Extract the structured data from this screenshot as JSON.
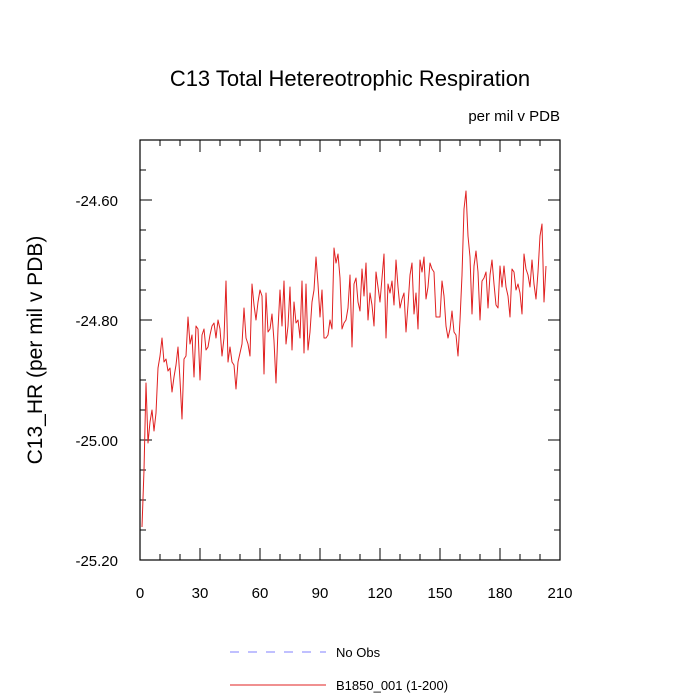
{
  "chart_data": {
    "type": "line",
    "title": "C13 Total Hetereotrophic Respiration",
    "units": "per mil v PDB",
    "ylabel": "C13_HR  (per mil v PDB)",
    "xlabel": "",
    "xlim": [
      0,
      210
    ],
    "ylim": [
      -25.2,
      -24.5
    ],
    "xticks": [
      0,
      30,
      60,
      90,
      120,
      150,
      180,
      210
    ],
    "yticks": [
      -25.2,
      -25.0,
      -24.8,
      -24.6
    ],
    "ytick_labels": [
      "-25.20",
      "-25.00",
      "-24.80",
      "-24.60"
    ],
    "legend": [
      {
        "name": "No Obs",
        "color": "#8080ff",
        "dash": true
      },
      {
        "name": "B1850_001 (1-200)",
        "color": "#e02020",
        "dash": false
      }
    ],
    "series": [
      {
        "name": "B1850_001 (1-200)",
        "color": "#e02020",
        "x_start": 1,
        "values": [
          -25.145,
          -25.05,
          -24.905,
          -25.005,
          -24.97,
          -24.95,
          -24.985,
          -24.955,
          -24.88,
          -24.86,
          -24.83,
          -24.87,
          -24.865,
          -24.885,
          -24.88,
          -24.92,
          -24.895,
          -24.875,
          -24.845,
          -24.9,
          -24.965,
          -24.865,
          -24.86,
          -24.795,
          -24.84,
          -24.825,
          -24.895,
          -24.81,
          -24.815,
          -24.9,
          -24.825,
          -24.815,
          -24.85,
          -24.845,
          -24.825,
          -24.81,
          -24.805,
          -24.83,
          -24.8,
          -24.815,
          -24.86,
          -24.83,
          -24.735,
          -24.87,
          -24.845,
          -24.87,
          -24.875,
          -24.915,
          -24.87,
          -24.855,
          -24.84,
          -24.78,
          -24.83,
          -24.84,
          -24.86,
          -24.74,
          -24.775,
          -24.8,
          -24.77,
          -24.75,
          -24.76,
          -24.89,
          -24.755,
          -24.82,
          -24.815,
          -24.79,
          -24.835,
          -24.905,
          -24.815,
          -24.75,
          -24.81,
          -24.735,
          -24.84,
          -24.81,
          -24.745,
          -24.85,
          -24.77,
          -24.805,
          -24.8,
          -24.83,
          -24.735,
          -24.855,
          -24.74,
          -24.85,
          -24.82,
          -24.77,
          -24.75,
          -24.695,
          -24.74,
          -24.795,
          -24.75,
          -24.83,
          -24.83,
          -24.825,
          -24.8,
          -24.815,
          -24.68,
          -24.705,
          -24.69,
          -24.73,
          -24.815,
          -24.805,
          -24.8,
          -24.78,
          -24.725,
          -24.845,
          -24.74,
          -24.73,
          -24.77,
          -24.785,
          -24.715,
          -24.76,
          -24.705,
          -24.8,
          -24.755,
          -24.775,
          -24.81,
          -24.72,
          -24.745,
          -24.77,
          -24.73,
          -24.69,
          -24.83,
          -24.74,
          -24.755,
          -24.735,
          -24.775,
          -24.7,
          -24.745,
          -24.78,
          -24.765,
          -24.755,
          -24.82,
          -24.775,
          -24.725,
          -24.705,
          -24.79,
          -24.755,
          -24.815,
          -24.7,
          -24.72,
          -24.695,
          -24.765,
          -24.745,
          -24.705,
          -24.715,
          -24.72,
          -24.795,
          -24.795,
          -24.795,
          -24.735,
          -24.76,
          -24.81,
          -24.83,
          -24.815,
          -24.785,
          -24.82,
          -24.825,
          -24.86,
          -24.8,
          -24.725,
          -24.615,
          -24.585,
          -24.66,
          -24.695,
          -24.79,
          -24.71,
          -24.685,
          -24.72,
          -24.8,
          -24.735,
          -24.73,
          -24.72,
          -24.78,
          -24.725,
          -24.7,
          -24.74,
          -24.775,
          -24.78,
          -24.71,
          -24.745,
          -24.71,
          -24.745,
          -24.76,
          -24.795,
          -24.715,
          -24.72,
          -24.75,
          -24.74,
          -24.755,
          -24.79,
          -24.69,
          -24.715,
          -24.725,
          -24.745,
          -24.7,
          -24.74,
          -24.765,
          -24.72,
          -24.66,
          -24.64,
          -24.77,
          -24.71
        ]
      }
    ]
  }
}
